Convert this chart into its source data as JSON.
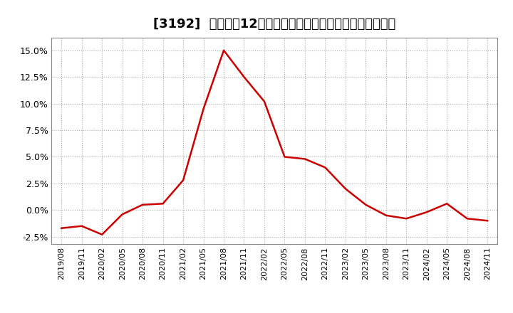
{
  "title": "[3192]  売上高の12か月移動合計の対前年同期増減率の推移",
  "line_color": "#cc0000",
  "background_color": "#ffffff",
  "plot_bg_color": "#ffffff",
  "grid_color": "#aaaaaa",
  "ylim": [
    -3.2,
    16.2
  ],
  "yticks": [
    -2.5,
    0.0,
    2.5,
    5.0,
    7.5,
    10.0,
    12.5,
    15.0
  ],
  "ytick_labels": [
    "-2.5%",
    "0.0%",
    "2.5%",
    "5.0%",
    "7.5%",
    "10.0%",
    "12.5%",
    "15.0%"
  ],
  "dates": [
    "2019/08",
    "2019/11",
    "2020/02",
    "2020/05",
    "2020/08",
    "2020/11",
    "2021/02",
    "2021/05",
    "2021/08",
    "2021/11",
    "2022/02",
    "2022/05",
    "2022/08",
    "2022/11",
    "2023/02",
    "2023/05",
    "2023/08",
    "2023/11",
    "2024/02",
    "2024/05",
    "2024/08",
    "2024/11"
  ],
  "values": [
    -1.7,
    -1.5,
    -2.3,
    -0.4,
    0.5,
    0.6,
    2.8,
    9.5,
    15.0,
    12.5,
    10.2,
    5.0,
    4.8,
    4.0,
    2.0,
    0.5,
    -0.5,
    -0.8,
    -0.2,
    0.6,
    -0.8,
    -1.0
  ],
  "title_fontsize": 13,
  "tick_fontsize": 9,
  "xtick_fontsize": 8
}
